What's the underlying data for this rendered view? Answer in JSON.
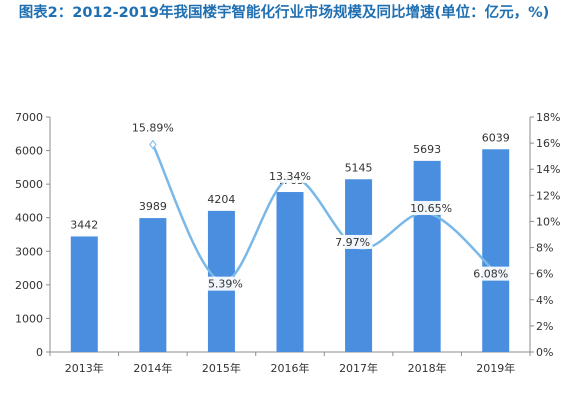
{
  "title": "图表2：2012-2019年我国楼宇智能化行业市场规模及同比增速(单位：亿元，%)",
  "chart_data": {
    "type": "bar",
    "categories": [
      "2013年",
      "2014年",
      "2015年",
      "2016年",
      "2017年",
      "2018年",
      "2019年"
    ],
    "series": [
      {
        "values": [
          3442,
          3989,
          4204,
          4765,
          5145,
          5693,
          6039
        ],
        "color": "#4a8ee0",
        "type": "bar",
        "axis": "left"
      },
      {
        "values": [
          null,
          15.89,
          5.39,
          13.34,
          7.97,
          10.65,
          6.08
        ],
        "color": "#7ab8e8",
        "type": "line",
        "axis": "right"
      }
    ],
    "value_labels": [
      "3442",
      "3989",
      "4204",
      "4765",
      "5145",
      "5693",
      "6039"
    ],
    "growth_labels": [
      "15.89%",
      "5.39%",
      "13.34%",
      "7.97%",
      "10.65%",
      "6.08%"
    ],
    "ylim_left": [
      0,
      7000
    ],
    "ylim_right": [
      0,
      18
    ],
    "yticks_left": [
      "0",
      "1000",
      "2000",
      "3000",
      "4000",
      "5000",
      "6000",
      "7000"
    ],
    "yticks_right": [
      "0%",
      "2%",
      "4%",
      "6%",
      "8%",
      "10%",
      "12%",
      "14%",
      "16%",
      "18%"
    ],
    "grid": false,
    "legend": "none"
  }
}
